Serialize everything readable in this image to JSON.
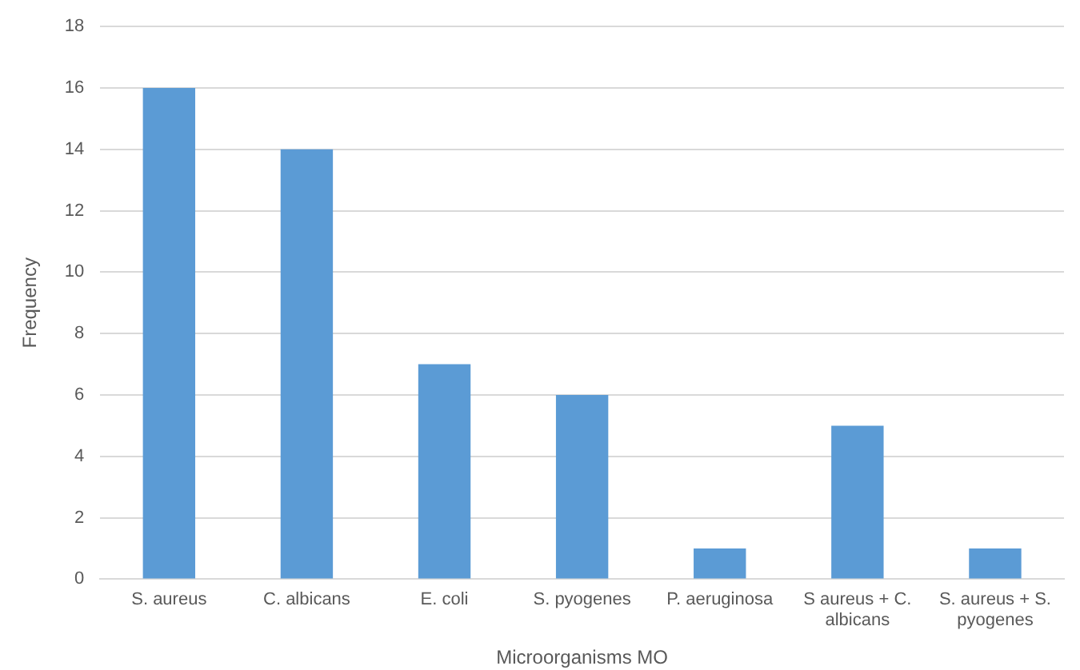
{
  "chart_data": {
    "type": "bar",
    "xlabel": "Microorganisms MO",
    "ylabel": "Frequency",
    "categories": [
      "S. aureus",
      "C. albicans",
      "E. coli",
      "S. pyogenes",
      "P. aeruginosa",
      "S aureus + C. albicans",
      "S. aureus + S. pyogenes"
    ],
    "values": [
      16,
      14,
      7,
      6,
      1,
      5,
      1
    ],
    "color": "#5b9bd5",
    "ylim": [
      0,
      18
    ],
    "yticks": [
      0,
      2,
      4,
      6,
      8,
      10,
      12,
      14,
      16,
      18
    ],
    "grid": "y",
    "legend": false
  }
}
